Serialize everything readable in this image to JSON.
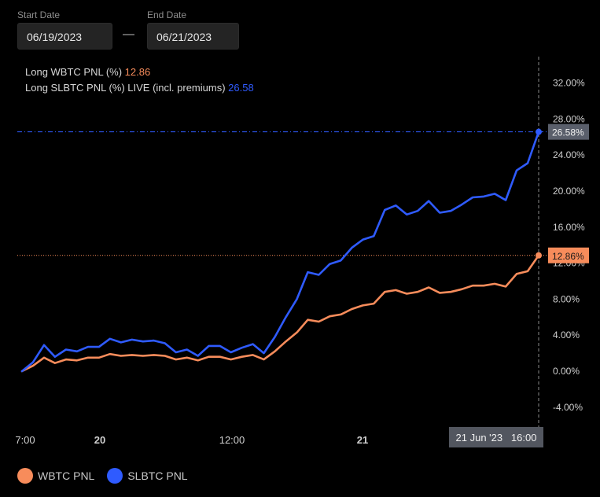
{
  "filters": {
    "start_label": "Start Date",
    "start_value": "06/19/2023",
    "separator": "—",
    "end_label": "End Date",
    "end_value": "06/21/2023"
  },
  "chart_data": {
    "type": "line",
    "x_tick_labels": [
      "7:00",
      "20",
      "12:00",
      "21"
    ],
    "ylim": [
      -6,
      36
    ],
    "y_ticks": [
      "32.00%",
      "28.00%",
      "24.00%",
      "20.00%",
      "16.00%",
      "12.00%",
      "8.00%",
      "4.00%",
      "0.00%",
      "-4.00%"
    ],
    "grid": false,
    "legend_position": "bottom-left",
    "crosshair": {
      "time_label": "21 Jun '23   16:00"
    },
    "series": [
      {
        "name": "WBTC PNL",
        "header_label": "Long WBTC PNL (%)",
        "last_value": "12.86",
        "last_badge": "12.86%",
        "color": "#f78c5b",
        "values": [
          0.0,
          0.6,
          1.5,
          0.9,
          1.3,
          1.2,
          1.5,
          1.5,
          1.9,
          1.7,
          1.8,
          1.7,
          1.8,
          1.7,
          1.3,
          1.5,
          1.2,
          1.6,
          1.6,
          1.3,
          1.6,
          1.8,
          1.3,
          2.2,
          3.3,
          4.3,
          5.7,
          5.5,
          6.1,
          6.3,
          6.9,
          7.3,
          7.5,
          8.8,
          9.0,
          8.6,
          8.8,
          9.3,
          8.7,
          8.8,
          9.1,
          9.5,
          9.5,
          9.7,
          9.4,
          10.8,
          11.1,
          12.86
        ]
      },
      {
        "name": "SLBTC PNL",
        "header_label": "Long SLBTC PNL (%) LIVE (incl. premiums)",
        "last_value": "26.58",
        "last_badge": "26.58%",
        "color": "#2f5bff",
        "values": [
          0.0,
          1.0,
          2.9,
          1.6,
          2.4,
          2.2,
          2.7,
          2.7,
          3.6,
          3.2,
          3.5,
          3.3,
          3.4,
          3.1,
          2.1,
          2.4,
          1.7,
          2.8,
          2.8,
          2.1,
          2.6,
          3.0,
          2.0,
          3.8,
          6.0,
          8.0,
          11.0,
          10.7,
          11.9,
          12.3,
          13.7,
          14.6,
          15.0,
          17.9,
          18.4,
          17.4,
          17.8,
          18.9,
          17.6,
          17.8,
          18.5,
          19.3,
          19.4,
          19.7,
          19.0,
          22.3,
          23.1,
          26.58
        ]
      }
    ]
  }
}
